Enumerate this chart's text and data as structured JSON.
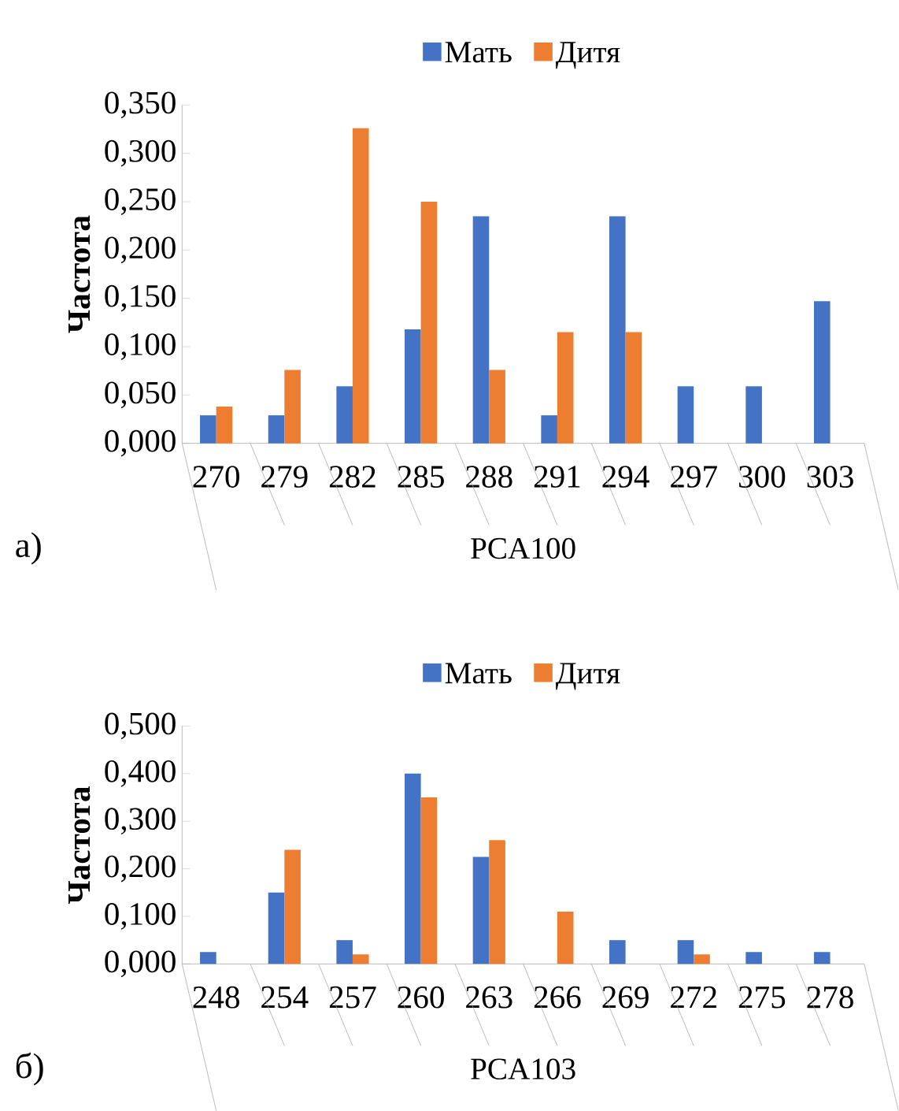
{
  "chart_data": [
    {
      "type": "bar",
      "categories": [
        "270",
        "279",
        "282",
        "285",
        "288",
        "291",
        "294",
        "297",
        "300",
        "303"
      ],
      "xlabel": "PCA100",
      "ylabel": "Частота",
      "legend": "top",
      "annotations": [
        "а)"
      ],
      "series": [
        {
          "name": "Мать",
          "color": "#4472c4",
          "values": [
            0.029,
            0.029,
            0.059,
            0.118,
            0.235,
            0.029,
            0.235,
            0.059,
            0.059,
            0.147
          ]
        },
        {
          "name": "Дитя",
          "color": "#ed7d31",
          "values": [
            0.038,
            0.076,
            0.326,
            0.25,
            0.076,
            0.115,
            0.115,
            0,
            0,
            0
          ]
        }
      ],
      "ylim": [
        0,
        0.35
      ],
      "yticks": [
        {
          "value": 0,
          "label": "0,000"
        },
        {
          "value": 0.05,
          "label": "0,050"
        },
        {
          "value": 0.1,
          "label": "0,100"
        },
        {
          "value": 0.15,
          "label": "0,150"
        },
        {
          "value": 0.2,
          "label": "0,200"
        },
        {
          "value": 0.25,
          "label": "0,250"
        },
        {
          "value": 0.3,
          "label": "0,300"
        },
        {
          "value": 0.35,
          "label": "0,350"
        }
      ]
    },
    {
      "type": "bar",
      "categories": [
        "248",
        "254",
        "257",
        "260",
        "263",
        "266",
        "269",
        "272",
        "275",
        "278"
      ],
      "xlabel": "PCA103",
      "ylabel": "Частота",
      "legend": "top",
      "annotations": [
        "б)"
      ],
      "series": [
        {
          "name": "Мать",
          "color": "#4472c4",
          "values": [
            0.025,
            0.15,
            0.05,
            0.4,
            0.225,
            0,
            0.05,
            0.05,
            0.025,
            0.025
          ]
        },
        {
          "name": "Дитя",
          "color": "#ed7d31",
          "values": [
            0,
            0.24,
            0.02,
            0.35,
            0.26,
            0.11,
            0,
            0.02,
            0,
            0
          ]
        }
      ],
      "ylim": [
        0,
        0.5
      ],
      "yticks": [
        {
          "value": 0,
          "label": "0,000"
        },
        {
          "value": 0.1,
          "label": "0,100"
        },
        {
          "value": 0.2,
          "label": "0,200"
        },
        {
          "value": 0.3,
          "label": "0,300"
        },
        {
          "value": 0.4,
          "label": "0,400"
        },
        {
          "value": 0.5,
          "label": "0,500"
        }
      ]
    }
  ]
}
